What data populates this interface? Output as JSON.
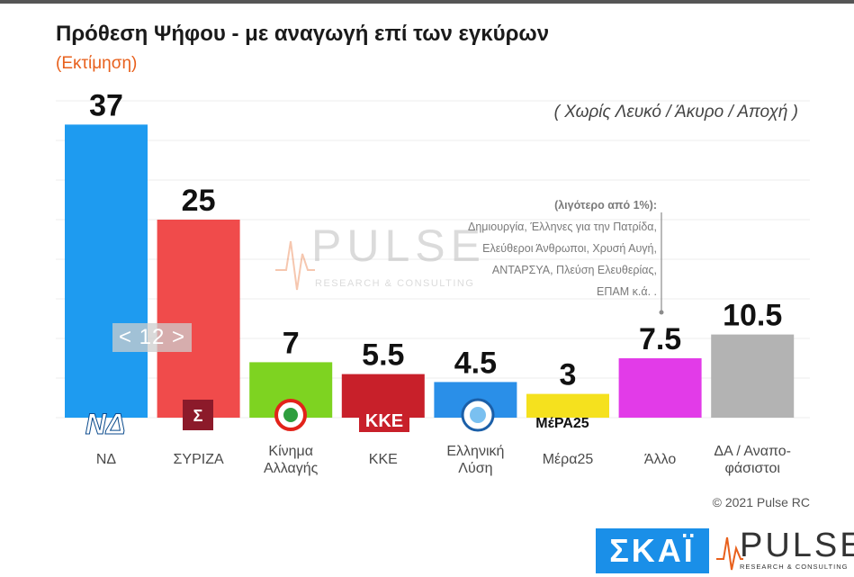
{
  "title": "Πρόθεση Ψήφου - με αναγωγή επί των εγκύρων",
  "subtitle": "(Εκτίμηση)",
  "note": "( Χωρίς Λευκό / Άκυρο / Αποχή )",
  "minor_parties": {
    "header": "(λιγότερο από 1%):",
    "lines": [
      "Δημιουργία, Έλληνες για την Πατρίδα,",
      "Ελεύθεροι Άνθρωποι, Χρυσή Αυγή,",
      "ΑΝΤΑΡΣΥΑ, Πλεύση Ελευθερίας,",
      "ΕΠΑΜ    κ.ά. ."
    ]
  },
  "watermark": {
    "word": "PULSE",
    "tagline": "RESEARCH & CONSULTING"
  },
  "pager": "< 12 >",
  "copyright": "© 2021 Pulse RC",
  "logos": {
    "skai": "ΣΚΑΪ",
    "pulse": "PULSE",
    "pulse_tagline": "RESEARCH & CONSULTING"
  },
  "party_logos": {
    "nd": "ΝΔ",
    "kke": "ΚΚΕ",
    "mera25": "ΜέΡΑ25"
  },
  "chart_data": {
    "type": "bar",
    "categories": [
      [
        "ΝΔ"
      ],
      [
        "ΣΥΡΙΖΑ"
      ],
      [
        "Κίνημα",
        "Αλλαγής"
      ],
      [
        "ΚΚΕ"
      ],
      [
        "Ελληνική",
        "Λύση"
      ],
      [
        "Μέρα25"
      ],
      [
        "Άλλο"
      ],
      [
        "ΔΑ / Αναπο-",
        "φάσιστοι"
      ]
    ],
    "values": [
      37,
      25,
      7,
      5.5,
      4.5,
      3,
      7.5,
      10.5
    ],
    "value_labels": [
      "37",
      "25",
      "7",
      "5.5",
      "4.5",
      "3",
      "7.5",
      "10.5"
    ],
    "colors": [
      "#1e9bf0",
      "#f04b4b",
      "#7ed321",
      "#c8202a",
      "#2a8fe8",
      "#f5e11e",
      "#e23be8",
      "#b3b3b3"
    ],
    "ylim": [
      0,
      40
    ],
    "grid": true,
    "title": "Πρόθεση Ψήφου - με αναγωγή επί των εγκύρων",
    "xlabel": "",
    "ylabel": ""
  }
}
